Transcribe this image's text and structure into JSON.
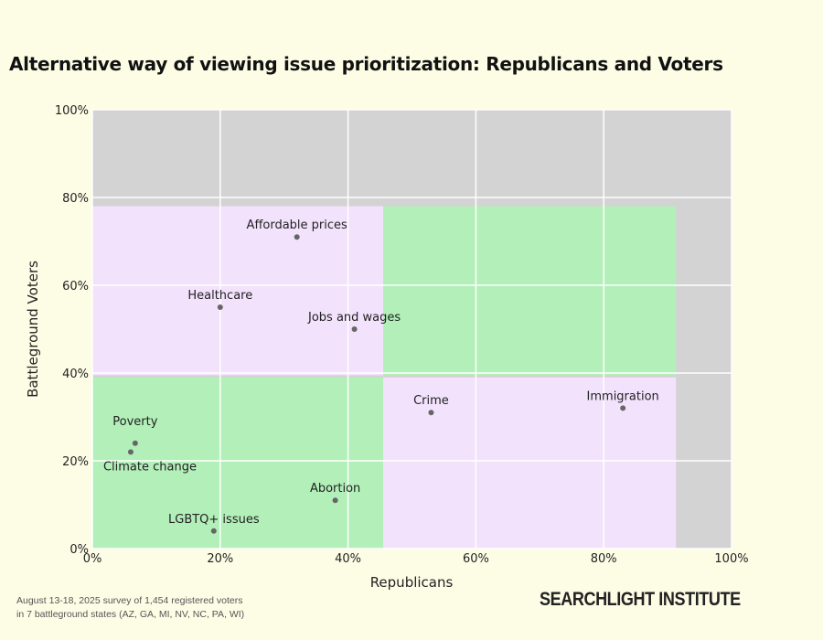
{
  "chart_data": {
    "type": "scatter",
    "title": "Alternative way of viewing issue prioritization: Republicans and Voters",
    "xlabel": "Republicans",
    "ylabel": "Battleground Voters",
    "xlim": [
      0,
      100
    ],
    "ylim": [
      0,
      100
    ],
    "grid": true,
    "xticks": [
      "0%",
      "20%",
      "40%",
      "60%",
      "80%",
      "100%"
    ],
    "yticks": [
      "0%",
      "20%",
      "40%",
      "60%",
      "80%",
      "100%"
    ],
    "tick_values": [
      0,
      20,
      40,
      60,
      80,
      100
    ],
    "regions": [
      {
        "name": "top-left",
        "x": [
          0,
          45.5
        ],
        "y": [
          39.5,
          78
        ],
        "color": "#f2e2fc"
      },
      {
        "name": "top-right",
        "x": [
          45.5,
          91.3
        ],
        "y": [
          39.5,
          78
        ],
        "color": "#b3efb9"
      },
      {
        "name": "bottom-left",
        "x": [
          0,
          45.5
        ],
        "y": [
          0,
          39
        ],
        "color": "#b3efb9"
      },
      {
        "name": "bottom-right",
        "x": [
          45.5,
          91.3
        ],
        "y": [
          0,
          39
        ],
        "color": "#f2e2fc"
      }
    ],
    "points": [
      {
        "label": "Affordable prices",
        "x": 32,
        "y": 71
      },
      {
        "label": "Healthcare",
        "x": 20,
        "y": 55
      },
      {
        "label": "Jobs and wages",
        "x": 41,
        "y": 50
      },
      {
        "label": "Crime",
        "x": 53,
        "y": 31
      },
      {
        "label": "Immigration",
        "x": 83,
        "y": 32
      },
      {
        "label": "Poverty",
        "x": 6.7,
        "y": 24
      },
      {
        "label": "Climate change",
        "x": 6,
        "y": 22
      },
      {
        "label": "Abortion",
        "x": 38,
        "y": 11
      },
      {
        "label": "LGBTQ+ issues",
        "x": 19,
        "y": 4
      }
    ],
    "colors": {
      "plot_bg": "#d3d3d3",
      "point": "#666666",
      "grid": "#ffffff"
    }
  },
  "footer": {
    "source_line1": "August 13-18, 2025 survey of 1,454 registered voters",
    "source_line2": "in 7 battleground states (AZ, GA, MI, NV, NC, PA, WI)",
    "brand": "SEARCHLIGHT INSTITUTE"
  }
}
